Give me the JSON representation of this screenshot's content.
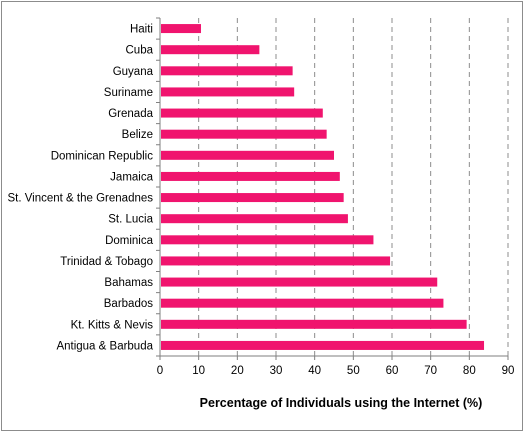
{
  "chart_data": {
    "type": "bar",
    "orientation": "horizontal",
    "categories": [
      "Haiti",
      "Cuba",
      "Guyana",
      "Suriname",
      "Grenada",
      "Belize",
      "Dominican Republic",
      "Jamaica",
      "St. Vincent & the Grenadnes",
      "St. Lucia",
      "Dominica",
      "Trinidad & Tobago",
      "Bahamas",
      "Barbados",
      "Kt. Kitts & Nevis",
      "Antigua & Barbuda"
    ],
    "values": [
      10.6,
      25.7,
      34.3,
      34.7,
      42.1,
      43.1,
      45.0,
      46.5,
      47.5,
      48.6,
      55.2,
      59.5,
      71.7,
      73.3,
      79.3,
      83.8
    ],
    "title": "",
    "xlabel": "Percentage of Individuals using the Internet (%)",
    "ylabel": "",
    "xlim": [
      0,
      90
    ],
    "xticks": [
      0,
      10,
      20,
      30,
      40,
      50,
      60,
      70,
      80,
      90
    ],
    "grid": "vertical dashed",
    "bar_color": "#f0146e",
    "grid_color": "#8c8c8c"
  }
}
